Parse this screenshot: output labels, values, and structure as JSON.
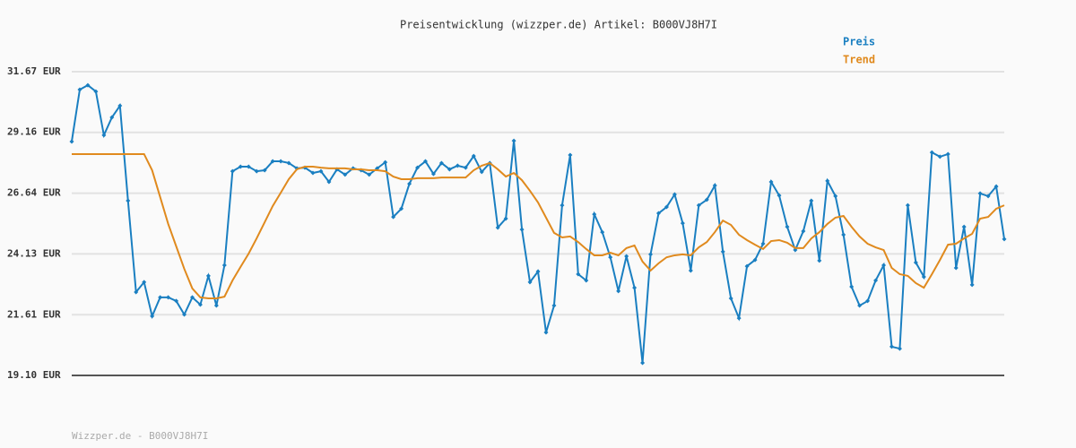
{
  "chart_data": {
    "type": "line",
    "title": "Preisentwicklung (wizzper.de) Artikel: B000VJ8H7I",
    "footer": "Wizzper.de - B000VJ8H7I",
    "legend": "top-right",
    "grid": true,
    "ylim": [
      19.1,
      31.67
    ],
    "yticks": [
      {
        "value": 19.1,
        "label": "19.10 EUR"
      },
      {
        "value": 21.61,
        "label": "21.61 EUR"
      },
      {
        "value": 24.13,
        "label": "24.13 EUR"
      },
      {
        "value": 26.64,
        "label": "26.64 EUR"
      },
      {
        "value": 29.16,
        "label": "29.16 EUR"
      },
      {
        "value": 31.67,
        "label": "31.67 EUR"
      }
    ],
    "series": [
      {
        "name": "Preis",
        "color": "#1a7fc1",
        "markers": true,
        "values": [
          28.78,
          30.93,
          31.11,
          30.85,
          29.04,
          29.78,
          30.26,
          26.33,
          22.55,
          22.96,
          21.55,
          22.33,
          22.33,
          22.18,
          21.62,
          22.33,
          22.03,
          23.22,
          21.99,
          23.66,
          27.55,
          27.74,
          27.74,
          27.55,
          27.59,
          27.96,
          27.96,
          27.89,
          27.67,
          27.7,
          27.48,
          27.55,
          27.11,
          27.63,
          27.41,
          27.67,
          27.59,
          27.41,
          27.67,
          27.92,
          25.66,
          26.0,
          27.03,
          27.7,
          27.96,
          27.44,
          27.89,
          27.63,
          27.78,
          27.7,
          28.18,
          27.52,
          27.89,
          25.22,
          25.59,
          28.81,
          25.14,
          22.96,
          23.4,
          20.88,
          21.99,
          26.14,
          28.22,
          23.29,
          23.03,
          25.77,
          25.03,
          23.99,
          22.59,
          24.03,
          22.73,
          19.62,
          24.11,
          25.81,
          26.07,
          26.59,
          25.4,
          23.44,
          26.14,
          26.37,
          26.96,
          24.22,
          22.29,
          21.47,
          23.62,
          23.88,
          24.55,
          27.11,
          26.55,
          25.25,
          24.29,
          25.07,
          26.33,
          23.85,
          27.15,
          26.52,
          24.92,
          22.77,
          21.99,
          22.18,
          23.03,
          23.66,
          20.29,
          20.21,
          26.14,
          23.77,
          23.18,
          28.33,
          28.15,
          28.26,
          23.55,
          25.25,
          22.85,
          26.63,
          26.52,
          26.92,
          24.74
        ]
      },
      {
        "name": "Trend",
        "color": "#e08a1e",
        "markers": false,
        "values": [
          28.26,
          28.26,
          28.26,
          28.26,
          28.26,
          28.26,
          28.26,
          28.26,
          28.26,
          28.26,
          27.59,
          26.48,
          25.37,
          24.44,
          23.51,
          22.7,
          22.33,
          22.29,
          22.29,
          22.36,
          23.03,
          23.59,
          24.14,
          24.77,
          25.44,
          26.11,
          26.66,
          27.22,
          27.63,
          27.74,
          27.74,
          27.7,
          27.67,
          27.67,
          27.67,
          27.63,
          27.63,
          27.59,
          27.59,
          27.55,
          27.33,
          27.22,
          27.22,
          27.26,
          27.26,
          27.26,
          27.29,
          27.29,
          27.29,
          27.29,
          27.59,
          27.78,
          27.89,
          27.63,
          27.33,
          27.48,
          27.18,
          26.74,
          26.26,
          25.63,
          25.0,
          24.81,
          24.85,
          24.62,
          24.33,
          24.07,
          24.07,
          24.18,
          24.07,
          24.37,
          24.48,
          23.81,
          23.44,
          23.74,
          23.99,
          24.07,
          24.11,
          24.07,
          24.4,
          24.62,
          25.03,
          25.51,
          25.33,
          24.92,
          24.7,
          24.51,
          24.33,
          24.66,
          24.7,
          24.59,
          24.37,
          24.37,
          24.77,
          25.03,
          25.37,
          25.63,
          25.7,
          25.25,
          24.85,
          24.55,
          24.4,
          24.29,
          23.55,
          23.29,
          23.22,
          22.92,
          22.73,
          23.29,
          23.88,
          24.51,
          24.55,
          24.77,
          24.96,
          25.59,
          25.66,
          26.0,
          26.14
        ]
      }
    ]
  }
}
